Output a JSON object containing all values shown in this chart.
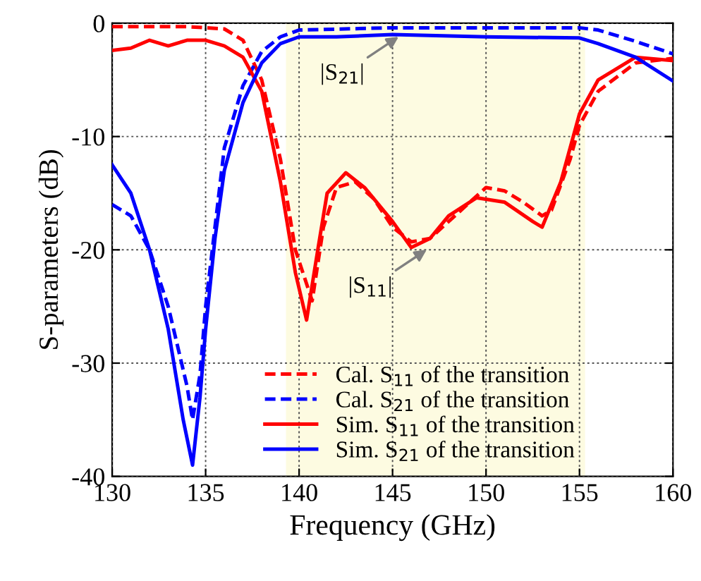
{
  "chart_data": {
    "type": "line",
    "xlabel": "Frequency (GHz)",
    "ylabel": "S-parameters (dB)",
    "xlim": [
      130,
      160
    ],
    "ylim": [
      -40,
      0
    ],
    "xticks": [
      130,
      135,
      140,
      145,
      150,
      155,
      160
    ],
    "yticks": [
      -40,
      -30,
      -20,
      -10,
      0
    ],
    "grid": true,
    "legend": "bottom right",
    "marker": "none",
    "bands": [
      {
        "axis": "x",
        "from": 139.3,
        "to": 155.3,
        "label": null,
        "color": "#fdfbe1"
      }
    ],
    "annotations": [
      {
        "text": "|S$_{21}$|",
        "x": 145.5,
        "y": -1
      },
      {
        "text": "|S$_{11}$|",
        "x": 147,
        "y": -19.8
      }
    ],
    "series": [
      {
        "name": "Cal. S$_{11}$ of the transition",
        "color": "#ff0000",
        "line_style": "dashed",
        "x": [
          130,
          132,
          134,
          136,
          137,
          138,
          139,
          139.8,
          140.7,
          141.3,
          142,
          143,
          144,
          145,
          146,
          147,
          148,
          150,
          151,
          152,
          153,
          153.5,
          154.5,
          155,
          156,
          158,
          160
        ],
        "values": [
          -0.3,
          -0.3,
          -0.3,
          -0.5,
          -1.5,
          -5,
          -12,
          -20,
          -24.5,
          -18,
          -14.5,
          -14,
          -15.5,
          -18,
          -19.3,
          -19,
          -17.5,
          -14.5,
          -14.8,
          -15.8,
          -17,
          -16.5,
          -12,
          -9,
          -6,
          -3.5,
          -3.1
        ]
      },
      {
        "name": "Cal. S$_{21}$ of the transition",
        "color": "#0000ff",
        "line_style": "dashed",
        "x": [
          130,
          131,
          132,
          133,
          134,
          134.3,
          134.7,
          135,
          135.5,
          136,
          137,
          138,
          139,
          140,
          145,
          155,
          156,
          158,
          160
        ],
        "values": [
          -16,
          -17,
          -20,
          -25,
          -32,
          -35,
          -31,
          -25,
          -18,
          -11,
          -5.5,
          -2.5,
          -1.2,
          -0.6,
          -0.4,
          -0.4,
          -0.6,
          -1.6,
          -2.7
        ]
      },
      {
        "name": "Sim. S$_{11}$ of the transition",
        "color": "#ff0000",
        "line_style": "solid",
        "x": [
          130,
          131,
          132,
          133,
          134,
          135,
          136,
          137,
          138,
          139,
          139.8,
          140.4,
          141,
          141.5,
          142.5,
          143.5,
          145,
          146,
          147,
          148,
          149.5,
          151,
          152.5,
          153,
          154,
          155,
          156,
          158,
          160
        ],
        "values": [
          -2.4,
          -2.2,
          -1.5,
          -2,
          -1.5,
          -1.5,
          -2,
          -3,
          -6,
          -14,
          -22,
          -26.2,
          -20,
          -15,
          -13.2,
          -14.5,
          -17.5,
          -19.8,
          -19,
          -17,
          -15.4,
          -15.8,
          -17.5,
          -18,
          -14,
          -8,
          -5,
          -3,
          -3.3
        ]
      },
      {
        "name": "Sim. S$_{21}$ of the transition",
        "color": "#0000ff",
        "line_style": "solid",
        "x": [
          130,
          131,
          132,
          133,
          133.8,
          134.3,
          134.7,
          135,
          135.5,
          136,
          137,
          138,
          139,
          140,
          142,
          145,
          150,
          155,
          156,
          158,
          160
        ],
        "values": [
          -12.5,
          -15,
          -20,
          -27,
          -35,
          -39,
          -33,
          -27,
          -19,
          -13,
          -7,
          -3.5,
          -1.8,
          -1.2,
          -1.2,
          -1,
          -1.2,
          -1.3,
          -1.8,
          -3,
          -5.1
        ]
      }
    ]
  }
}
